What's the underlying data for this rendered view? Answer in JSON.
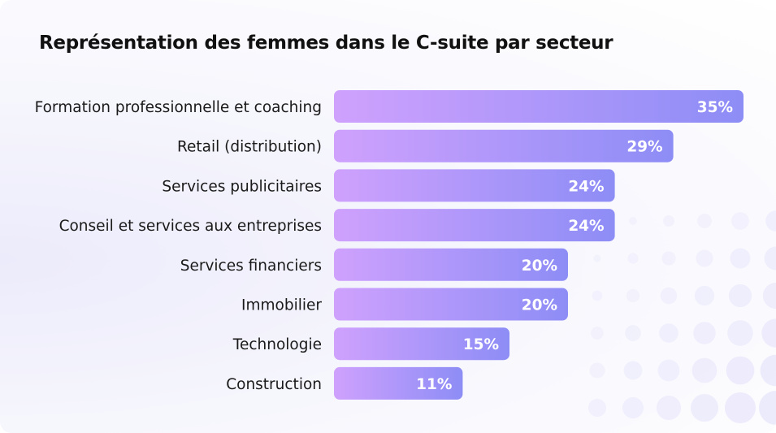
{
  "chart_data": {
    "type": "bar",
    "orientation": "horizontal",
    "title": "Représentation des femmes dans le C-suite par secteur",
    "categories": [
      "Formation professionnelle et coaching",
      "Retail (distribution)",
      "Services publicitaires",
      "Conseil et services aux entreprises",
      "Services financiers",
      "Immobilier",
      "Technologie",
      "Construction"
    ],
    "values": [
      35,
      29,
      24,
      24,
      20,
      20,
      15,
      11
    ],
    "value_labels": [
      "35%",
      "29%",
      "24%",
      "24%",
      "20%",
      "20%",
      "15%",
      "11%"
    ],
    "unit": "%",
    "colors": {
      "bar_start": "#cfa1fd",
      "bar_end": "#8d8df6",
      "label": "#ffffff",
      "text": "#1a1a1a"
    },
    "grid": false,
    "legend": "none"
  }
}
